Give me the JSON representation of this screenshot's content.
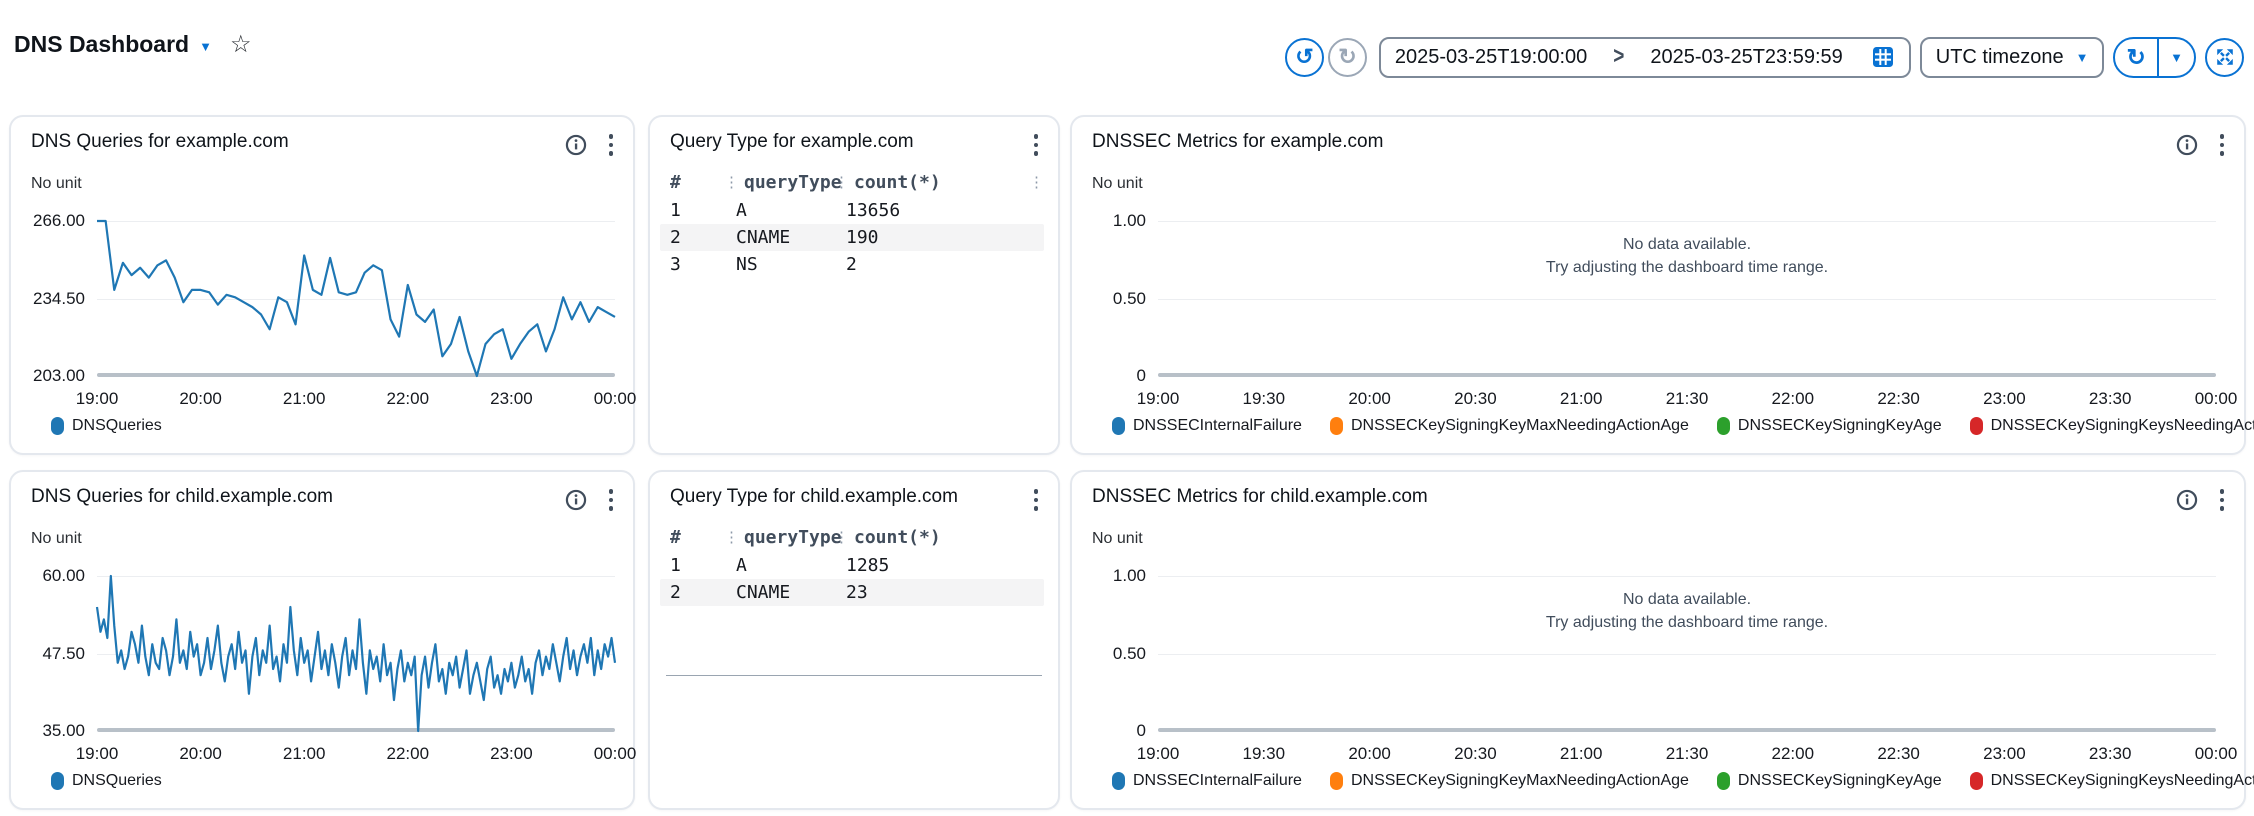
{
  "header": {
    "title": "DNS Dashboard"
  },
  "toolbar": {
    "start_time": "2025-03-25T19:00:00",
    "range_separator": ">",
    "end_time": "2025-03-25T23:59:59",
    "timezone": "UTC timezone"
  },
  "icons": {
    "title_caret": "▼",
    "star": "☆",
    "undo": "↺",
    "redo": "↻",
    "refresh": "↻",
    "caret_down": "▼",
    "column_handle": "⋮"
  },
  "colors": {
    "accent": "#0972d3",
    "disabled": "#9ba7b6",
    "line_blue": "#1f77b4",
    "orange": "#ff7f0e",
    "green": "#2ca02c",
    "red": "#d62728"
  },
  "no_data_message": [
    "No data available.",
    "Try adjusting the dashboard time range."
  ],
  "chart_data": [
    {
      "type": "line",
      "title": "DNS Queries for example.com",
      "unit": "No unit",
      "color": "#1f77b4",
      "ylim": [
        203,
        266
      ],
      "yticks": [
        "266.00",
        "234.50",
        "203.00"
      ],
      "xticks": [
        "19:00",
        "20:00",
        "21:00",
        "22:00",
        "23:00",
        "00:00"
      ],
      "x_range": [
        "19:00",
        "00:00"
      ],
      "x_interval_minutes": 5,
      "legend": [
        {
          "label": "DNSQueries",
          "color": "#1f77b4"
        }
      ],
      "values": [
        266,
        266,
        238,
        249,
        244,
        247,
        243,
        248,
        250,
        243,
        233,
        238,
        238,
        237,
        232,
        236,
        235,
        233,
        231,
        228,
        222,
        235,
        233,
        224,
        252,
        238,
        236,
        251,
        237,
        236,
        237,
        245,
        248,
        246,
        226,
        219,
        240,
        228,
        225,
        230,
        211,
        216,
        227,
        213,
        203,
        216,
        220,
        222,
        210,
        216,
        221,
        224,
        213,
        222,
        235,
        226,
        233,
        225,
        231,
        229,
        227
      ]
    },
    {
      "type": "table",
      "title": "Query Type for example.com",
      "columns": [
        "#",
        "queryType",
        "count(*)"
      ],
      "rows": [
        [
          "1",
          "A",
          "13656"
        ],
        [
          "2",
          "CNAME",
          "190"
        ],
        [
          "3",
          "NS",
          "2"
        ]
      ]
    },
    {
      "type": "line",
      "title": "DNSSEC Metrics for example.com",
      "unit": "No unit",
      "ylim": [
        0,
        1
      ],
      "yticks": [
        "1.00",
        "0.50",
        "0"
      ],
      "xticks": [
        "19:00",
        "19:30",
        "20:00",
        "20:30",
        "21:00",
        "21:30",
        "22:00",
        "22:30",
        "23:00",
        "23:30",
        "00:00"
      ],
      "values": [],
      "message": [
        "No data available.",
        "Try adjusting the dashboard time range."
      ],
      "legend": [
        {
          "label": "DNSSECInternalFailure",
          "color": "#1f77b4"
        },
        {
          "label": "DNSSECKeySigningKeyMaxNeedingActionAge",
          "color": "#ff7f0e"
        },
        {
          "label": "DNSSECKeySigningKeyAge",
          "color": "#2ca02c"
        },
        {
          "label": "DNSSECKeySigningKeysNeedingAction",
          "color": "#d62728"
        }
      ]
    },
    {
      "type": "line",
      "title": "DNS Queries for child.example.com",
      "unit": "No unit",
      "color": "#1f77b4",
      "ylim": [
        35,
        60
      ],
      "yticks": [
        "60.00",
        "47.50",
        "35.00"
      ],
      "xticks": [
        "19:00",
        "20:00",
        "21:00",
        "22:00",
        "23:00",
        "00:00"
      ],
      "x_range": [
        "19:00",
        "00:00"
      ],
      "x_interval_minutes": 2,
      "legend": [
        {
          "label": "DNSQueries",
          "color": "#1f77b4"
        }
      ],
      "values": [
        55,
        51,
        53,
        50,
        60,
        52,
        46,
        48,
        45,
        47,
        51,
        49,
        46,
        52,
        47,
        44,
        49,
        46,
        45,
        50,
        48,
        44,
        47,
        53,
        46,
        48,
        45,
        51,
        47,
        49,
        44,
        46,
        50,
        45,
        48,
        52,
        46,
        43,
        47,
        49,
        45,
        51,
        46,
        48,
        41,
        47,
        50,
        44,
        48,
        46,
        52,
        45,
        47,
        43,
        49,
        46,
        55,
        48,
        44,
        50,
        46,
        48,
        43,
        47,
        51,
        45,
        48,
        44,
        49,
        46,
        42,
        47,
        50,
        44,
        48,
        45,
        53,
        46,
        41,
        48,
        45,
        47,
        43,
        49,
        44,
        46,
        40,
        45,
        48,
        43,
        46,
        44,
        47,
        35,
        44,
        47,
        42,
        46,
        49,
        43,
        45,
        41,
        46,
        44,
        47,
        42,
        45,
        48,
        41,
        44,
        46,
        43,
        40,
        45,
        47,
        42,
        44,
        41,
        45,
        43,
        46,
        42,
        44,
        47,
        43,
        45,
        41,
        46,
        48,
        44,
        47,
        45,
        49,
        46,
        43,
        47,
        50,
        45,
        48,
        44,
        47,
        49,
        46,
        50,
        44,
        48,
        45,
        49,
        47,
        50,
        46
      ]
    },
    {
      "type": "table",
      "title": "Query Type for child.example.com",
      "columns": [
        "#",
        "queryType",
        "count(*)"
      ],
      "rows": [
        [
          "1",
          "A",
          "1285"
        ],
        [
          "2",
          "CNAME",
          "23"
        ]
      ]
    },
    {
      "type": "line",
      "title": "DNSSEC Metrics for child.example.com",
      "unit": "No unit",
      "ylim": [
        0,
        1
      ],
      "yticks": [
        "1.00",
        "0.50",
        "0"
      ],
      "xticks": [
        "19:00",
        "19:30",
        "20:00",
        "20:30",
        "21:00",
        "21:30",
        "22:00",
        "22:30",
        "23:00",
        "23:30",
        "00:00"
      ],
      "values": [],
      "message": [
        "No data available.",
        "Try adjusting the dashboard time range."
      ],
      "legend": [
        {
          "label": "DNSSECInternalFailure",
          "color": "#1f77b4"
        },
        {
          "label": "DNSSECKeySigningKeyMaxNeedingActionAge",
          "color": "#ff7f0e"
        },
        {
          "label": "DNSSECKeySigningKeyAge",
          "color": "#2ca02c"
        },
        {
          "label": "DNSSECKeySigningKeysNeedingAction",
          "color": "#d62728"
        }
      ]
    }
  ]
}
